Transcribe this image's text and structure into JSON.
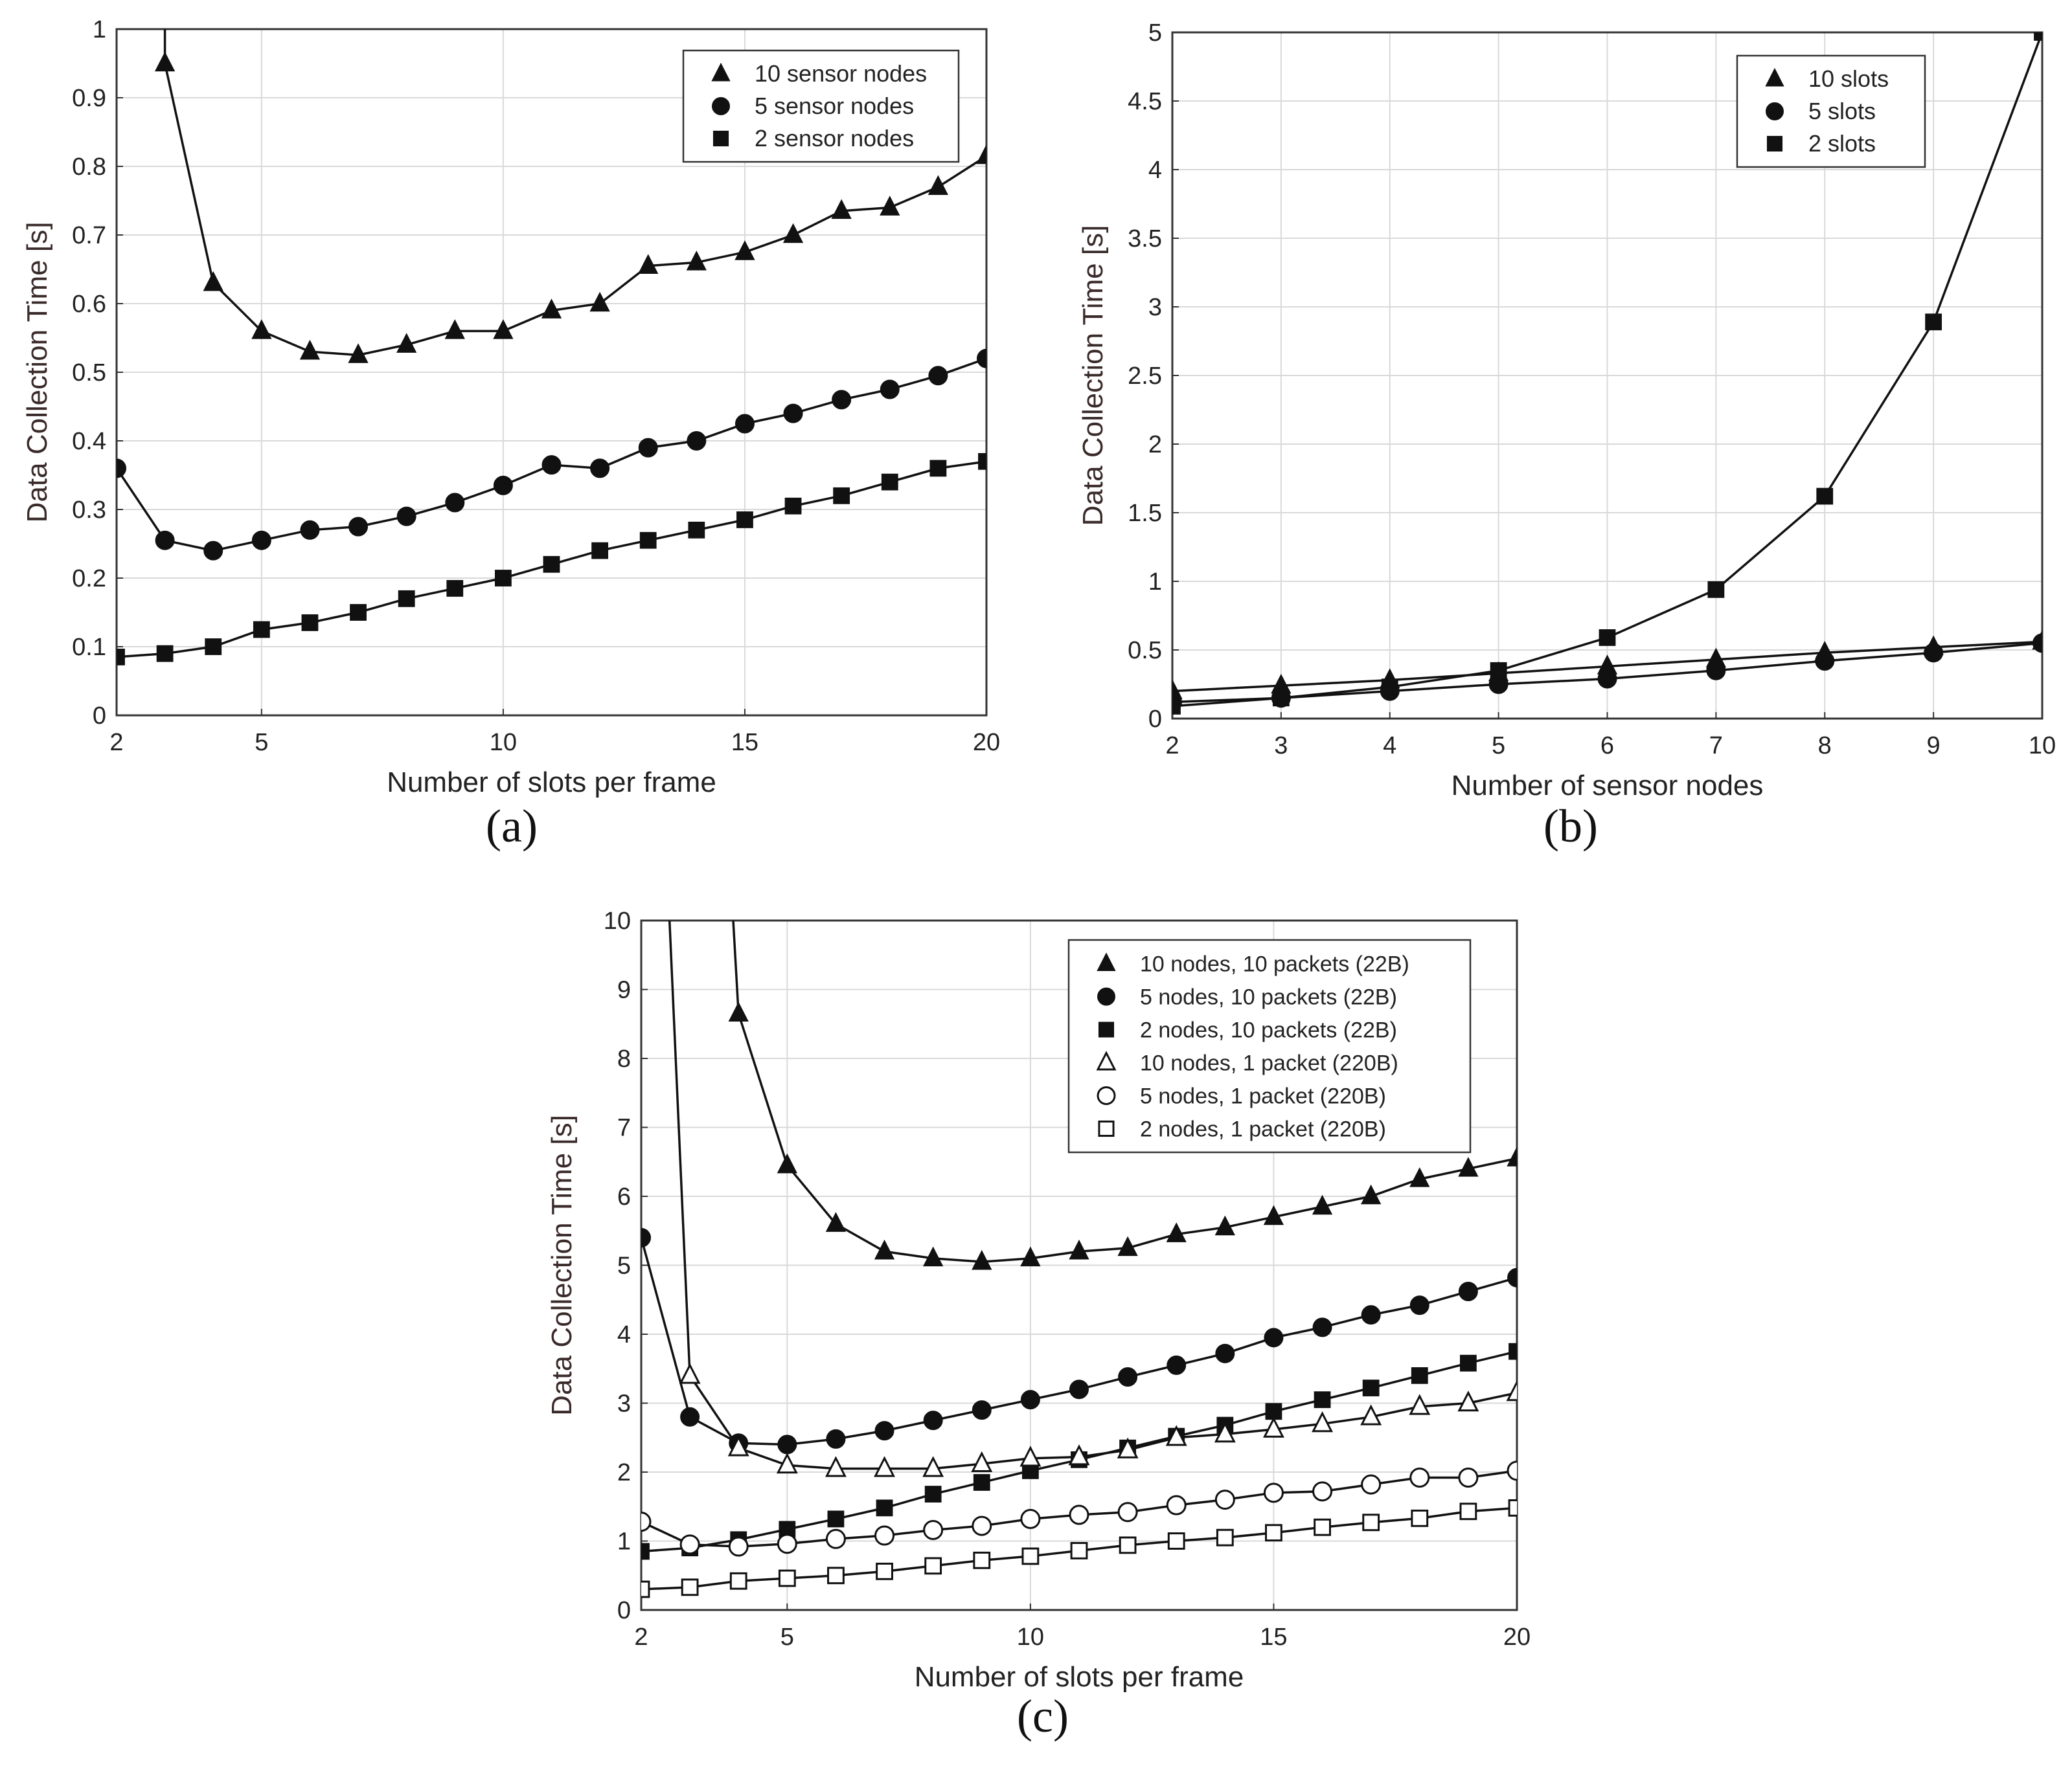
{
  "chart_data": [
    {
      "id": "a",
      "type": "line",
      "caption": "(a)",
      "xlabel": "Number of slots per frame",
      "ylabel": "Data Collection Time [s]",
      "xlim": [
        2,
        20
      ],
      "ylim": [
        0,
        1
      ],
      "xticks": [
        2,
        5,
        10,
        15,
        20
      ],
      "xtick_labels": [
        "2",
        "5",
        "10",
        "15",
        "20"
      ],
      "yticks": [
        0,
        0.1,
        0.2,
        0.3,
        0.4,
        0.5,
        0.6,
        0.7,
        0.8,
        0.9,
        1
      ],
      "ytick_labels": [
        "0",
        "0.1",
        "0.2",
        "0.3",
        "0.4",
        "0.5",
        "0.6",
        "0.7",
        "0.8",
        "0.9",
        "1"
      ],
      "grid": true,
      "legend_position": "top-right",
      "x": [
        2,
        3,
        4,
        5,
        6,
        7,
        8,
        9,
        10,
        11,
        12,
        13,
        14,
        15,
        16,
        17,
        18,
        19,
        20
      ],
      "series": [
        {
          "name": "10 sensor nodes",
          "marker": "triangle",
          "lead_from": [
            3.0,
            1.05
          ],
          "values": [
            null,
            0.95,
            0.63,
            0.56,
            0.53,
            0.525,
            0.54,
            0.56,
            0.56,
            0.59,
            0.6,
            0.655,
            0.66,
            0.675,
            0.7,
            0.735,
            0.74,
            0.77,
            0.815
          ]
        },
        {
          "name": "5 sensor nodes",
          "marker": "circle",
          "values": [
            0.36,
            0.255,
            0.24,
            0.255,
            0.27,
            0.275,
            0.29,
            0.31,
            0.335,
            0.365,
            0.36,
            0.39,
            0.4,
            0.425,
            0.44,
            0.46,
            0.475,
            0.495,
            0.52
          ]
        },
        {
          "name": "2 sensor nodes",
          "marker": "square",
          "values": [
            0.085,
            0.09,
            0.1,
            0.125,
            0.135,
            0.15,
            0.17,
            0.185,
            0.2,
            0.22,
            0.24,
            0.255,
            0.27,
            0.285,
            0.305,
            0.32,
            0.34,
            0.36,
            0.37
          ]
        }
      ]
    },
    {
      "id": "b",
      "type": "line",
      "caption": "(b)",
      "xlabel": "Number of sensor nodes",
      "ylabel": "Data Collection Time [s]",
      "xlim": [
        2,
        10
      ],
      "ylim": [
        0,
        5
      ],
      "xticks": [
        2,
        3,
        4,
        5,
        6,
        7,
        8,
        9,
        10
      ],
      "xtick_labels": [
        "2",
        "3",
        "4",
        "5",
        "6",
        "7",
        "8",
        "9",
        "10"
      ],
      "yticks": [
        0,
        0.5,
        1,
        1.5,
        2,
        2.5,
        3,
        3.5,
        4,
        4.5,
        5
      ],
      "ytick_labels": [
        "0",
        "0.5",
        "1",
        "1.5",
        "2",
        "2.5",
        "3",
        "3.5",
        "4",
        "4.5",
        "5"
      ],
      "grid": true,
      "legend_position": "top-right",
      "x": [
        2,
        3,
        4,
        5,
        6,
        7,
        8,
        9,
        10
      ],
      "series": [
        {
          "name": "10 slots",
          "marker": "triangle",
          "values": [
            0.2,
            0.24,
            0.28,
            0.33,
            0.38,
            0.43,
            0.48,
            0.52,
            0.56
          ]
        },
        {
          "name": "5 slots",
          "marker": "circle",
          "values": [
            0.12,
            0.15,
            0.2,
            0.25,
            0.29,
            0.35,
            0.42,
            0.48,
            0.55
          ]
        },
        {
          "name": "2 slots",
          "marker": "square",
          "values": [
            0.09,
            0.15,
            0.23,
            0.35,
            0.59,
            0.94,
            1.62,
            2.89,
            5.0
          ]
        }
      ]
    },
    {
      "id": "c",
      "type": "line",
      "caption": "(c)",
      "xlabel": "Number of slots per frame",
      "ylabel": "Data Collection Time [s]",
      "xlim": [
        2,
        20
      ],
      "ylim": [
        0,
        10
      ],
      "xticks": [
        2,
        5,
        10,
        15,
        20
      ],
      "xtick_labels": [
        "2",
        "5",
        "10",
        "15",
        "20"
      ],
      "yticks": [
        0,
        1,
        2,
        3,
        4,
        5,
        6,
        7,
        8,
        9,
        10
      ],
      "ytick_labels": [
        "0",
        "1",
        "2",
        "3",
        "4",
        "5",
        "6",
        "7",
        "8",
        "9",
        "10"
      ],
      "grid": true,
      "legend_position": "top-right",
      "x": [
        2,
        3,
        4,
        5,
        6,
        7,
        8,
        9,
        10,
        11,
        12,
        13,
        14,
        15,
        16,
        17,
        18,
        19,
        20
      ],
      "series": [
        {
          "name": "10 nodes, 10 packets (22B)",
          "marker": "triangle",
          "lead_from": [
            3.85,
            10.5
          ],
          "values": [
            null,
            null,
            8.65,
            6.45,
            5.6,
            5.2,
            5.1,
            5.05,
            5.1,
            5.2,
            5.25,
            5.45,
            5.55,
            5.7,
            5.85,
            6.0,
            6.25,
            6.4,
            6.55
          ]
        },
        {
          "name": "5 nodes, 10 packets (22B)",
          "marker": "circle",
          "values": [
            5.4,
            2.8,
            2.42,
            2.4,
            2.48,
            2.6,
            2.75,
            2.9,
            3.05,
            3.2,
            3.38,
            3.55,
            3.72,
            3.95,
            4.1,
            4.28,
            4.42,
            4.62,
            4.82
          ]
        },
        {
          "name": "2 nodes, 10 packets (22B)",
          "marker": "square",
          "values": [
            0.85,
            0.9,
            1.02,
            1.17,
            1.32,
            1.48,
            1.68,
            1.85,
            2.02,
            2.18,
            2.35,
            2.52,
            2.68,
            2.88,
            3.05,
            3.22,
            3.4,
            3.58,
            3.75
          ]
        },
        {
          "name": "10 nodes, 1 packet (220B)",
          "marker": "triangle-open",
          "lead_from": [
            2.55,
            10.5
          ],
          "values": [
            null,
            3.4,
            2.35,
            2.1,
            2.05,
            2.05,
            2.05,
            2.12,
            2.2,
            2.22,
            2.32,
            2.5,
            2.55,
            2.62,
            2.7,
            2.8,
            2.95,
            3.0,
            3.15
          ]
        },
        {
          "name": "5 nodes, 1 packet (220B)",
          "marker": "circle-open",
          "values": [
            1.28,
            0.95,
            0.92,
            0.96,
            1.03,
            1.08,
            1.16,
            1.22,
            1.32,
            1.38,
            1.42,
            1.52,
            1.6,
            1.7,
            1.72,
            1.82,
            1.92,
            1.92,
            2.02
          ]
        },
        {
          "name": "2 nodes, 1 packet (220B)",
          "marker": "square-open",
          "values": [
            0.3,
            0.33,
            0.42,
            0.46,
            0.5,
            0.56,
            0.64,
            0.72,
            0.78,
            0.86,
            0.94,
            1.0,
            1.05,
            1.12,
            1.2,
            1.27,
            1.33,
            1.43,
            1.48
          ]
        }
      ]
    }
  ]
}
